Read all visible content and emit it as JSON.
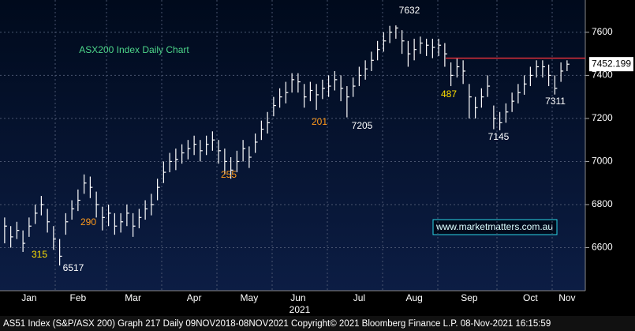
{
  "chart_data": {
    "type": "ohlc",
    "title": "ASX200 Index Daily Chart",
    "footer": "AS51 Index (S&P/ASX 200) Graph 217  Daily 09NOV2018-08NOV2021  Copyright© 2021 Bloomberg Finance L.P.  08-Nov-2021 16:15:59",
    "website": "www.marketmatters.com.au",
    "year_label": "2021",
    "last_price": {
      "value": 7452.199,
      "label": "7452.199"
    },
    "hline": {
      "value": 7480,
      "color": "#e0303a"
    },
    "color": "#ffffff",
    "grid": true,
    "ylim": [
      6400,
      7750
    ],
    "yticks": [
      6600,
      6800,
      7000,
      7200,
      7400,
      7600
    ],
    "categories": [
      null,
      null,
      null,
      null,
      "Jan",
      null,
      null,
      null,
      null,
      null,
      null,
      null,
      "Feb",
      null,
      null,
      null,
      null,
      null,
      null,
      null,
      null,
      "Mar",
      null,
      null,
      null,
      null,
      null,
      null,
      null,
      null,
      null,
      "Apr",
      null,
      null,
      null,
      null,
      null,
      null,
      null,
      null,
      "May",
      null,
      null,
      null,
      null,
      null,
      null,
      null,
      "Jun",
      null,
      null,
      null,
      null,
      null,
      null,
      null,
      null,
      null,
      "Jul",
      null,
      null,
      null,
      null,
      null,
      null,
      null,
      null,
      "Aug",
      null,
      null,
      null,
      null,
      null,
      null,
      null,
      null,
      "Sep",
      null,
      null,
      null,
      null,
      null,
      null,
      null,
      null,
      null,
      "Oct",
      null,
      null,
      null,
      null,
      null,
      "Nov"
    ],
    "high": [
      6740,
      6700,
      6720,
      6680,
      6740,
      6800,
      6840,
      6780,
      6700,
      6640,
      6760,
      6820,
      6870,
      6940,
      6930,
      6860,
      6790,
      6800,
      6760,
      6760,
      6800,
      6760,
      6780,
      6820,
      6850,
      6920,
      7000,
      7040,
      7060,
      7080,
      7100,
      7120,
      7100,
      7120,
      7140,
      7100,
      7060,
      7020,
      7050,
      7100,
      7070,
      7130,
      7190,
      7230,
      7300,
      7340,
      7370,
      7410,
      7410,
      7360,
      7370,
      7360,
      7380,
      7400,
      7420,
      7400,
      7350,
      7390,
      7440,
      7470,
      7510,
      7560,
      7600,
      7630,
      7632,
      7610,
      7560,
      7570,
      7580,
      7570,
      7570,
      7570,
      7550,
      7460,
      7480,
      7470,
      7360,
      7300,
      7340,
      7400,
      7260,
      7230,
      7270,
      7320,
      7360,
      7400,
      7440,
      7470,
      7470,
      7450,
      7400,
      7460,
      7470
    ],
    "low": [
      6620,
      6600,
      6640,
      6580,
      6650,
      6710,
      6750,
      6670,
      6590,
      6517,
      6660,
      6730,
      6770,
      6850,
      6830,
      6740,
      6680,
      6700,
      6660,
      6670,
      6700,
      6650,
      6690,
      6730,
      6750,
      6820,
      6900,
      6950,
      6960,
      6990,
      7010,
      7030,
      7000,
      7030,
      7050,
      6990,
      6940,
      6920,
      6950,
      7000,
      6970,
      7040,
      7100,
      7130,
      7210,
      7250,
      7270,
      7320,
      7320,
      7250,
      7280,
      7240,
      7290,
      7300,
      7330,
      7280,
      7205,
      7300,
      7350,
      7380,
      7420,
      7470,
      7510,
      7550,
      7570,
      7500,
      7440,
      7470,
      7500,
      7490,
      7480,
      7490,
      7440,
      7350,
      7390,
      7360,
      7200,
      7200,
      7250,
      7300,
      7150,
      7145,
      7180,
      7230,
      7270,
      7310,
      7350,
      7390,
      7390,
      7350,
      7311,
      7370,
      7420
    ],
    "close": [
      6700,
      6650,
      6680,
      6620,
      6700,
      6760,
      6800,
      6720,
      6640,
      6560,
      6720,
      6780,
      6820,
      6900,
      6880,
      6800,
      6740,
      6760,
      6700,
      6720,
      6760,
      6700,
      6740,
      6780,
      6800,
      6880,
      6950,
      7000,
      7010,
      7040,
      7060,
      7080,
      7050,
      7080,
      7100,
      7050,
      7000,
      6960,
      7000,
      7060,
      7020,
      7090,
      7150,
      7180,
      7260,
      7300,
      7320,
      7380,
      7370,
      7300,
      7330,
      7310,
      7340,
      7350,
      7380,
      7340,
      7300,
      7350,
      7400,
      7430,
      7470,
      7520,
      7560,
      7600,
      7620,
      7560,
      7500,
      7520,
      7550,
      7540,
      7530,
      7540,
      7500,
      7400,
      7440,
      7420,
      7300,
      7250,
      7300,
      7350,
      7200,
      7180,
      7230,
      7280,
      7320,
      7360,
      7400,
      7440,
      7440,
      7400,
      7340,
      7420,
      7452
    ],
    "annotations": [
      "7632",
      "6517",
      "7145",
      "7311",
      "7205",
      "315",
      "290",
      "255",
      "201",
      "487"
    ]
  }
}
